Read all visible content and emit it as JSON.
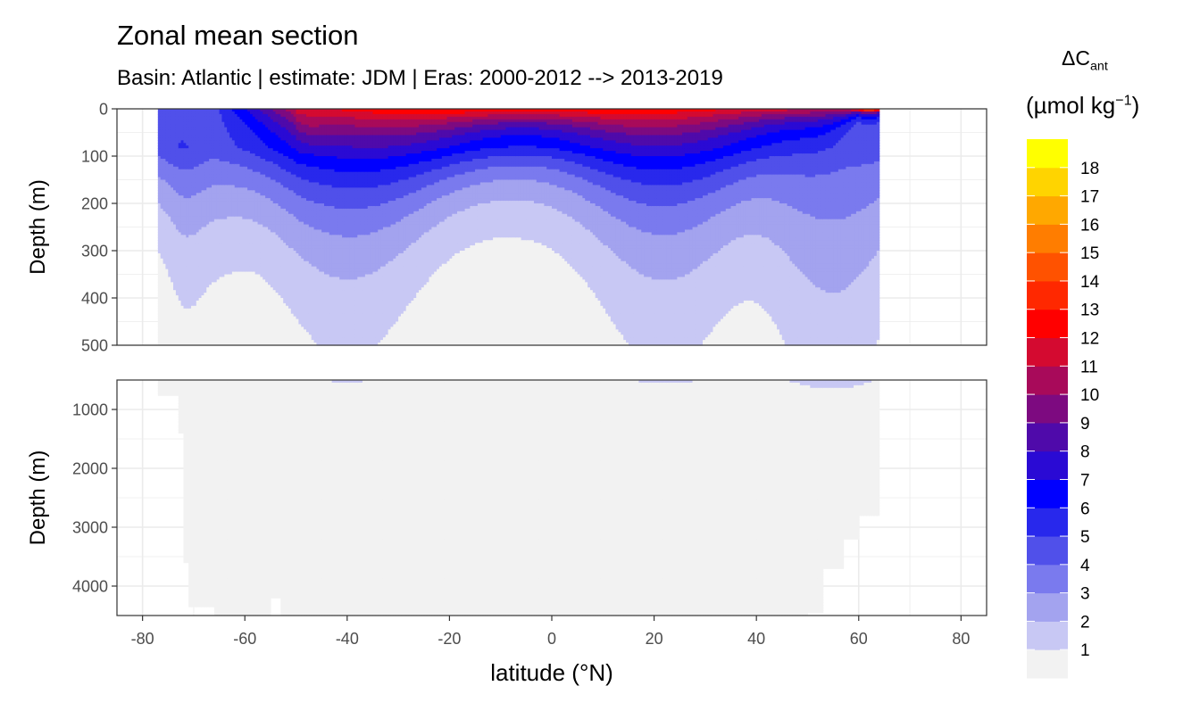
{
  "chart_data": {
    "type": "heatmap",
    "title": "Zonal mean section",
    "subtitle": "Basin: Atlantic | estimate: JDM  | Eras: 2000-2012 --> 2013-2019",
    "xlabel": "latitude (°N)",
    "ylabel": "Depth (m)",
    "x_ticks": [
      -80,
      -60,
      -40,
      -20,
      0,
      20,
      40,
      60,
      80
    ],
    "xlim": [
      -85,
      85
    ],
    "grid": true,
    "legend_placement": "right",
    "panels": [
      {
        "ylim": [
          0,
          500
        ],
        "y_ticks": [
          0,
          100,
          200,
          300,
          400,
          500
        ]
      },
      {
        "ylim": [
          500,
          4500
        ],
        "y_ticks": [
          1000,
          2000,
          3000,
          4000
        ]
      }
    ],
    "legend": {
      "title_main": "ΔC",
      "title_sub": "ant",
      "unit_prefix": "(µmol kg",
      "unit_sup": "−1",
      "unit_suffix": ")",
      "labels": [
        "1",
        "2",
        "3",
        "4",
        "5",
        "6",
        "7",
        "8",
        "9",
        "10",
        "11",
        "12",
        "13",
        "14",
        "15",
        "16",
        "17",
        "18"
      ],
      "colors": [
        "#f2f2f2",
        "#c8c8f4",
        "#a3a3ef",
        "#7a7aee",
        "#5050ea",
        "#2828ec",
        "#0000ff",
        "#2a0ad4",
        "#4f0aaa",
        "#7d0a80",
        "#a80a5a",
        "#d40a30",
        "#ff0000",
        "#ff2800",
        "#ff5200",
        "#ff7d00",
        "#ffa800",
        "#ffd400",
        "#ffff00"
      ]
    },
    "data_extent": {
      "lat_min": -77,
      "lat_max": 64
    }
  }
}
